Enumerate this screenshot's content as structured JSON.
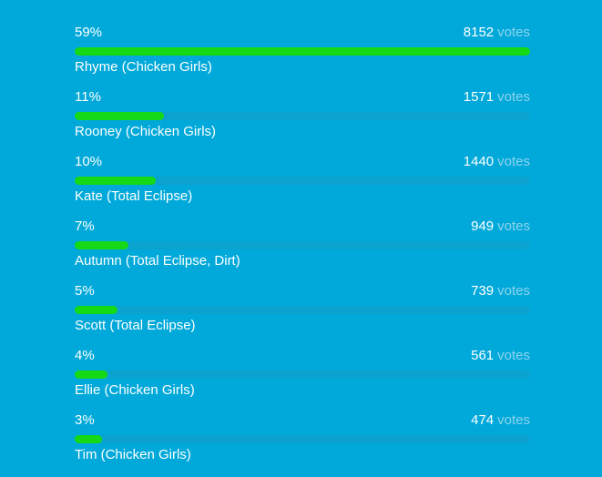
{
  "poll": {
    "votes_word": "votes",
    "bar_color": "#16d915",
    "options": [
      {
        "percent": "59%",
        "votes": "8152",
        "name": "Rhyme (Chicken Girls)",
        "fraction": 1.0
      },
      {
        "percent": "11%",
        "votes": "1571",
        "name": "Rooney (Chicken Girls)",
        "fraction": 0.195
      },
      {
        "percent": "10%",
        "votes": "1440",
        "name": "Kate (Total Eclipse)",
        "fraction": 0.178
      },
      {
        "percent": "7%",
        "votes": "949",
        "name": "Autumn (Total Eclipse, Dirt)",
        "fraction": 0.118
      },
      {
        "percent": "5%",
        "votes": "739",
        "name": "Scott (Total Eclipse)",
        "fraction": 0.093
      },
      {
        "percent": "4%",
        "votes": "561",
        "name": "Ellie (Chicken Girls)",
        "fraction": 0.071
      },
      {
        "percent": "3%",
        "votes": "474",
        "name": "Tim (Chicken Girls)",
        "fraction": 0.06
      }
    ]
  }
}
